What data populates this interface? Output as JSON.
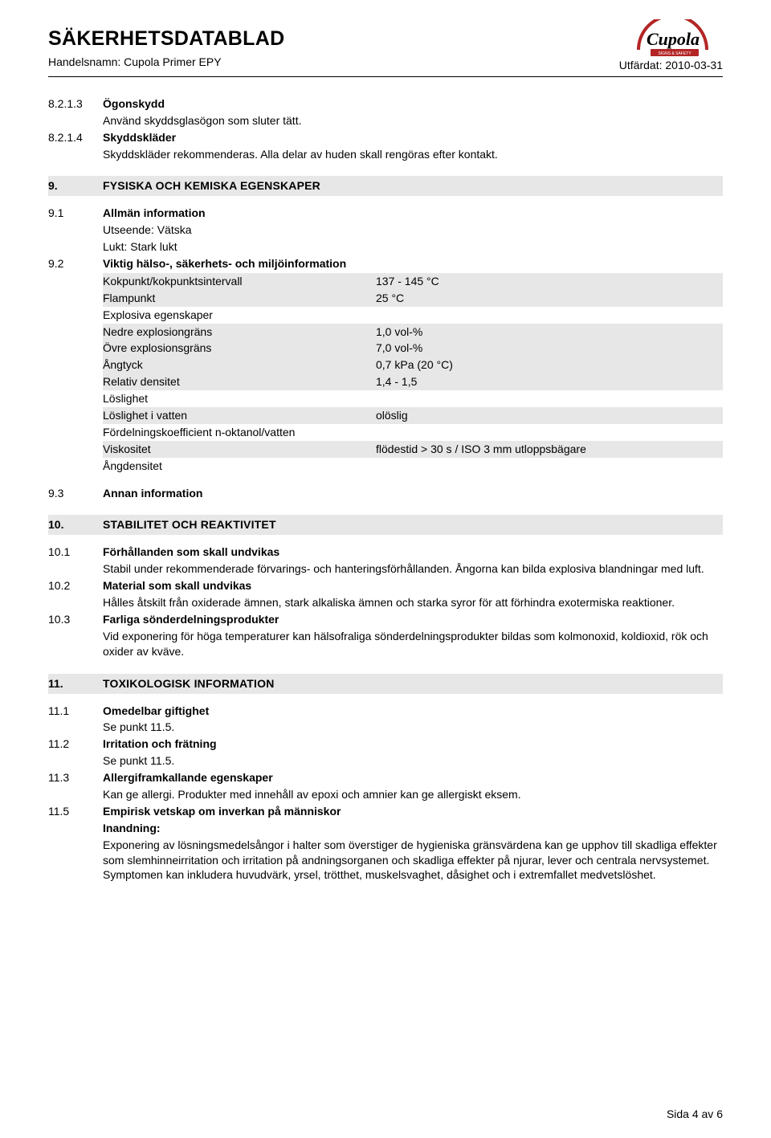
{
  "header": {
    "doc_title": "SÄKERHETSDATABLAD",
    "trade_name": "Handelsnamn: Cupola Primer EPY",
    "issued": "Utfärdat: 2010-03-31",
    "logo_text": "Cupola",
    "logo_subtitle": "SIGNS & SAFETY",
    "logo_color_arc": "#b32525",
    "logo_color_text": "#000000"
  },
  "s8": {
    "n_8213": "8.2.1.3",
    "t_8213": "Ögonskydd",
    "b_8213": "Använd skyddsglasögon som sluter tätt.",
    "n_8214": "8.2.1.4",
    "t_8214": "Skyddskläder",
    "b_8214": "Skyddskläder rekommenderas. Alla delar av huden skall rengöras efter kontakt."
  },
  "s9": {
    "num": "9.",
    "title": "FYSISKA OCH KEMISKA EGENSKAPER",
    "n91": "9.1",
    "t91": "Allmän information",
    "b91a": "Utseende: Vätska",
    "b91b": "Lukt: Stark lukt",
    "n92": "9.2",
    "t92": "Viktig hälso-, säkerhets- och miljöinformation",
    "rows": [
      {
        "label": "Kokpunkt/kokpunktsintervall",
        "value": "137 - 145 °C",
        "shaded": true
      },
      {
        "label": "Flampunkt",
        "value": "25 °C",
        "shaded": true
      },
      {
        "label": "Explosiva egenskaper",
        "value": "",
        "shaded": false
      },
      {
        "label": "Nedre explosiongräns",
        "value": "1,0 vol-%",
        "shaded": true
      },
      {
        "label": "Övre explosionsgräns",
        "value": "7,0 vol-%",
        "shaded": true
      },
      {
        "label": "Ångtyck",
        "value": "0,7 kPa (20 °C)",
        "shaded": true
      },
      {
        "label": "Relativ densitet",
        "value": "1,4 - 1,5",
        "shaded": true
      },
      {
        "label": "Löslighet",
        "value": "",
        "shaded": false
      },
      {
        "label": "Löslighet i vatten",
        "value": "olöslig",
        "shaded": true
      },
      {
        "label": "Fördelningskoefficient n-oktanol/vatten",
        "value": "",
        "shaded": false
      },
      {
        "label": "Viskositet",
        "value": "flödestid > 30 s / ISO 3 mm utloppsbägare",
        "shaded": true
      },
      {
        "label": "Ångdensitet",
        "value": "",
        "shaded": false
      }
    ],
    "n93": "9.3",
    "t93": "Annan information"
  },
  "s10": {
    "num": "10.",
    "title": "STABILITET OCH REAKTIVITET",
    "n101": "10.1",
    "t101": "Förhållanden som skall undvikas",
    "b101": "Stabil under rekommenderade förvarings- och hanteringsförhållanden. Ångorna kan bilda explosiva blandningar med luft.",
    "n102": "10.2",
    "t102": "Material som skall undvikas",
    "b102": "Hålles åtskilt från oxiderade ämnen, stark alkaliska ämnen och starka syror för att förhindra exotermiska reaktioner.",
    "n103": "10.3",
    "t103": "Farliga sönderdelningsprodukter",
    "b103": "Vid exponering för höga temperaturer kan hälsofraliga sönderdelningsprodukter bildas som kolmonoxid, koldioxid, rök och oxider av kväve."
  },
  "s11": {
    "num": "11.",
    "title": "TOXIKOLOGISK INFORMATION",
    "n111": "11.1",
    "t111": "Omedelbar giftighet",
    "b111": "Se punkt 11.5.",
    "n112": "11.2",
    "t112": "Irritation och frätning",
    "b112": "Se punkt 11.5.",
    "n113": "11.3",
    "t113": "Allergiframkallande egenskaper",
    "b113": "Kan ge allergi. Produkter med innehåll av epoxi och amnier kan ge allergiskt eksem.",
    "n115": "11.5",
    "t115": "Empirisk vetskap om inverkan på människor",
    "t115b": "Inandning:",
    "b115": "Exponering av lösningsmedelsångor i halter som överstiger de hygieniska gränsvärdena kan ge upphov till skadliga effekter som slemhinneirritation och irritation på andningsorganen och skadliga effekter på njurar, lever och centrala nervsystemet. Symptomen kan inkludera huvudvärk, yrsel, trötthet, muskelsvaghet, dåsighet och i extremfallet medvetslöshet."
  },
  "footer": {
    "page": "Sida 4 av 6"
  },
  "colors": {
    "shaded": "#e7e7e7",
    "text": "#000000",
    "bg": "#ffffff"
  }
}
